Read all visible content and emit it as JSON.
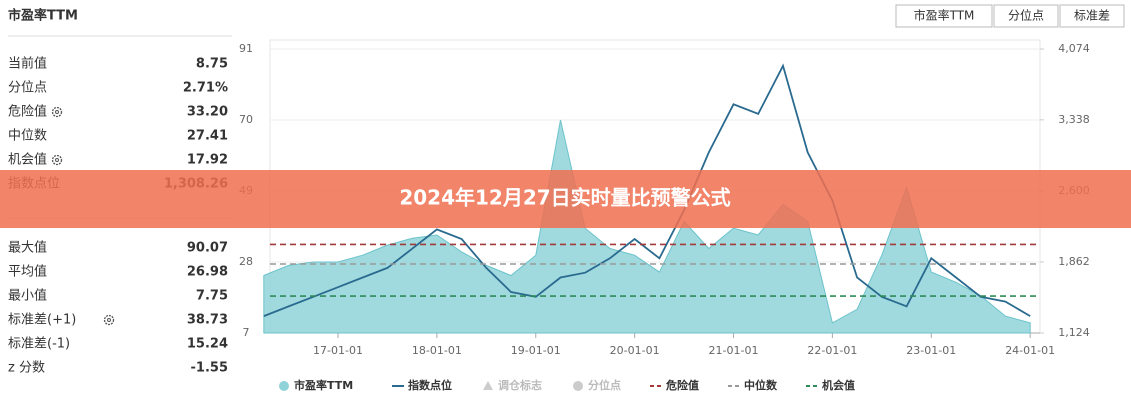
{
  "header": {
    "title": "市盈率TTM",
    "tabs": [
      "市盈率TTM",
      "分位点",
      "标准差"
    ]
  },
  "stats_top": [
    {
      "label": "当前值",
      "value": "8.75"
    },
    {
      "label": "分位点",
      "value": "2.71%"
    },
    {
      "label": "危险值",
      "value": "33.20",
      "gear": true
    },
    {
      "label": "中位数",
      "value": "27.41"
    },
    {
      "label": "机会值",
      "value": "17.92",
      "gear": true
    },
    {
      "label": "指数点位",
      "value": "1,308.26"
    }
  ],
  "stats_bottom": [
    {
      "label": "最大值",
      "value": "90.07"
    },
    {
      "label": "平均值",
      "value": "26.98"
    },
    {
      "label": "最小值",
      "value": "7.75"
    },
    {
      "label": "标准差(+1)",
      "value": "38.73",
      "gear": true
    },
    {
      "label": "标准差(-1)",
      "value": "15.24"
    },
    {
      "label": "z 分数",
      "value": "-1.55"
    }
  ],
  "banner": "2024年12月27日实时量比预警公式",
  "chart_data": {
    "type": "area-line",
    "categories": [
      "16-04-01",
      "16-07-01",
      "16-10-01",
      "17-01-01",
      "17-04-01",
      "17-07-01",
      "17-10-01",
      "18-01-01",
      "18-04-01",
      "18-07-01",
      "18-10-01",
      "19-01-01",
      "19-04-01",
      "19-07-01",
      "19-10-01",
      "20-01-01",
      "20-04-01",
      "20-07-01",
      "20-10-01",
      "21-01-01",
      "21-04-01",
      "21-07-01",
      "21-10-01",
      "22-01-01",
      "22-04-01",
      "22-07-01",
      "22-10-01",
      "23-01-01",
      "23-04-01",
      "23-07-01",
      "23-10-01",
      "24-01-01"
    ],
    "xticks": [
      "17-01-01",
      "18-01-01",
      "19-01-01",
      "20-01-01",
      "21-01-01",
      "22-01-01",
      "23-01-01",
      "24-01-01"
    ],
    "series": [
      {
        "name": "市盈率TTM",
        "color": "#8fd3d9",
        "axis": "y",
        "values": [
          24,
          27,
          28,
          28,
          30,
          33,
          35,
          36,
          31,
          27,
          24,
          30,
          70,
          38,
          32,
          30,
          25,
          40,
          32,
          38,
          36,
          45,
          40,
          10,
          14,
          30,
          50,
          25,
          22,
          18,
          12,
          10
        ]
      },
      {
        "name": "指数点位",
        "color": "#2a6a8f",
        "axis": "y2",
        "values": [
          1300,
          1400,
          1500,
          1600,
          1700,
          1800,
          2000,
          2200,
          2100,
          1800,
          1550,
          1500,
          1700,
          1750,
          1900,
          2100,
          1900,
          2400,
          3000,
          3500,
          3400,
          3900,
          3000,
          2500,
          1700,
          1500,
          1400,
          1900,
          1700,
          1500,
          1450,
          1300
        ]
      }
    ],
    "legend_inactive": [
      "调仓标志",
      "分位点"
    ],
    "reference_lines": [
      {
        "name": "危险值",
        "value": 33.2,
        "color": "#a33a3a"
      },
      {
        "name": "中位数",
        "value": 27.41,
        "color": "#999999"
      },
      {
        "name": "机会值",
        "value": 17.92,
        "color": "#2e8b57"
      }
    ],
    "ylim": [
      7,
      91
    ],
    "yticks": [
      7,
      28,
      49,
      70,
      91
    ],
    "y2lim": [
      1124,
      4074
    ],
    "y2ticks": [
      {
        "value": 1124,
        "label": "1,124"
      },
      {
        "value": 1862,
        "label": "1,862"
      },
      {
        "value": 2600,
        "label": "2,600"
      },
      {
        "value": 3338,
        "label": "3,338"
      },
      {
        "value": 4074,
        "label": "4,074"
      }
    ]
  }
}
